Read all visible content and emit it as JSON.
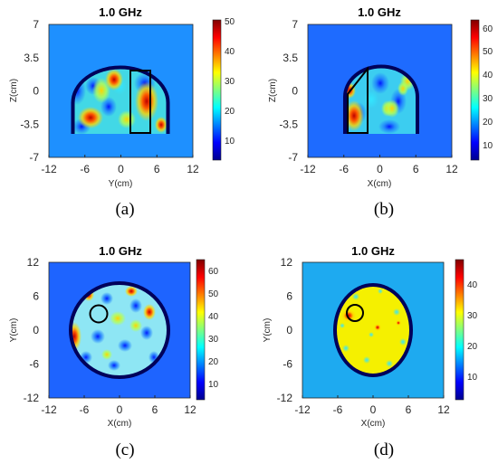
{
  "chart_data": [
    {
      "id": "a",
      "type": "heatmap",
      "caption": "(a)",
      "title": "1.0 GHz",
      "xlabel": "Y(cm)",
      "ylabel": "Z(cm)",
      "xlim": [
        -12,
        12
      ],
      "ylim": [
        -7,
        7
      ],
      "xticks": [
        "-12",
        "-6",
        "0",
        "6",
        "12"
      ],
      "yticks": [
        "7",
        "3.5",
        "0",
        "-3.5",
        "-7"
      ],
      "colorbar": {
        "min": 3,
        "max": 50,
        "ticks": [
          "50",
          "40",
          "30",
          "20",
          "10"
        ]
      },
      "background_value": 22,
      "inclusion_shape": "rectangle",
      "hot_spots": [
        [
          -3,
          -3.5
        ],
        [
          3.5,
          -1.5
        ],
        [
          -1,
          1.5
        ],
        [
          5,
          -3.5
        ]
      ]
    },
    {
      "id": "b",
      "type": "heatmap",
      "caption": "(b)",
      "title": "1.0 GHz",
      "xlabel": "X(cm)",
      "ylabel": "Z(cm)",
      "xlim": [
        -12,
        12
      ],
      "ylim": [
        -7,
        7
      ],
      "xticks": [
        "-12",
        "-6",
        "0",
        "6",
        "12"
      ],
      "yticks": [
        "7",
        "3.5",
        "0",
        "-3.5",
        "-7"
      ],
      "colorbar": {
        "min": 3,
        "max": 63,
        "ticks": [
          "60",
          "50",
          "40",
          "30",
          "20",
          "10"
        ]
      },
      "background_value": 20,
      "inclusion_shape": "trapezoid",
      "hot_spots": [
        [
          -3.5,
          -3.2
        ],
        [
          -4,
          0
        ],
        [
          1.5,
          -2
        ],
        [
          3,
          1
        ]
      ]
    },
    {
      "id": "c",
      "type": "heatmap",
      "caption": "(c)",
      "title": "1.0 GHz",
      "xlabel": "X(cm)",
      "ylabel": "Y(cm)",
      "xlim": [
        -12,
        12
      ],
      "ylim": [
        -12,
        12
      ],
      "xticks": [
        "-12",
        "-6",
        "0",
        "6",
        "12"
      ],
      "yticks": [
        "12",
        "6",
        "0",
        "-6",
        "-12"
      ],
      "colorbar": {
        "min": 3,
        "max": 65,
        "ticks": [
          "60",
          "50",
          "40",
          "30",
          "20",
          "10"
        ]
      },
      "background_value": 20,
      "inclusion_shape": "circle",
      "hot_spots": [
        [
          -5.5,
          1
        ],
        [
          -4,
          6
        ],
        [
          2,
          7
        ],
        [
          4,
          -1
        ]
      ]
    },
    {
      "id": "d",
      "type": "heatmap",
      "caption": "(d)",
      "title": "1.0 GHz",
      "xlabel": "X(cm)",
      "ylabel": "Y(cm)",
      "xlim": [
        -12,
        12
      ],
      "ylim": [
        -12,
        12
      ],
      "xticks": [
        "-12",
        "-6",
        "0",
        "6",
        "12"
      ],
      "yticks": [
        "12",
        "6",
        "0",
        "-6",
        "-12"
      ],
      "colorbar": {
        "min": 3,
        "max": 48,
        "ticks": [
          "40",
          "30",
          "20",
          "10"
        ]
      },
      "background_value": 22,
      "inclusion_shape": "circle",
      "hot_spots": [
        [
          -3,
          3
        ],
        [
          1,
          0
        ]
      ]
    }
  ]
}
